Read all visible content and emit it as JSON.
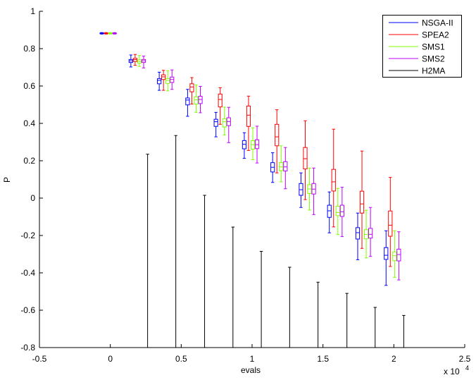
{
  "chart_data": {
    "type": "boxplot",
    "xlabel": "evals",
    "ylabel": "P",
    "x_multiplier_label": "x 10",
    "x_multiplier_exponent": "4",
    "xlim": [
      -0.5,
      2.5
    ],
    "ylim": [
      -0.8,
      1
    ],
    "x_ticks": [
      "-0.5",
      "0",
      "0.5",
      "1",
      "1.5",
      "2",
      "2.5"
    ],
    "y_ticks": [
      "-0.8",
      "-0.6",
      "-0.4",
      "-0.2",
      "0",
      "0.2",
      "0.4",
      "0.6",
      "0.8",
      "1"
    ],
    "grid": false,
    "legend_position": "top-right",
    "stat_fields": [
      "x",
      "whisker_low",
      "q1",
      "median",
      "q3",
      "whisker_high"
    ],
    "series": [
      {
        "name": "NSGA-II",
        "color": "#0000ff",
        "boxes": [
          [
            -0.06,
            0.878,
            0.88,
            0.882,
            0.884,
            0.886
          ],
          [
            0.145,
            0.702,
            0.726,
            0.735,
            0.742,
            0.766
          ],
          [
            0.345,
            0.577,
            0.612,
            0.63,
            0.639,
            0.674
          ],
          [
            0.545,
            0.438,
            0.499,
            0.525,
            0.536,
            0.582
          ],
          [
            0.745,
            0.328,
            0.384,
            0.409,
            0.422,
            0.459
          ],
          [
            0.945,
            0.213,
            0.264,
            0.288,
            0.308,
            0.35
          ],
          [
            1.145,
            0.084,
            0.14,
            0.165,
            0.19,
            0.243
          ],
          [
            1.345,
            -0.05,
            0.015,
            0.045,
            0.078,
            0.135
          ],
          [
            1.545,
            -0.186,
            -0.103,
            -0.068,
            -0.038,
            0.033
          ],
          [
            1.745,
            -0.33,
            -0.219,
            -0.185,
            -0.158,
            -0.08
          ],
          [
            1.945,
            -0.467,
            -0.328,
            -0.306,
            -0.265,
            -0.175
          ]
        ]
      },
      {
        "name": "SPEA2",
        "color": "#ff0000",
        "boxes": [
          [
            -0.03,
            0.878,
            0.88,
            0.882,
            0.884,
            0.886
          ],
          [
            0.175,
            0.711,
            0.731,
            0.741,
            0.748,
            0.769
          ],
          [
            0.375,
            0.577,
            0.635,
            0.649,
            0.66,
            0.684
          ],
          [
            0.575,
            0.503,
            0.569,
            0.595,
            0.612,
            0.645
          ],
          [
            0.775,
            0.395,
            0.488,
            0.528,
            0.557,
            0.591
          ],
          [
            0.975,
            0.255,
            0.384,
            0.444,
            0.493,
            0.546
          ],
          [
            1.175,
            0.135,
            0.28,
            0.328,
            0.395,
            0.473
          ],
          [
            1.375,
            -0.008,
            0.156,
            0.211,
            0.271,
            0.414
          ],
          [
            1.575,
            -0.154,
            0.038,
            0.087,
            0.154,
            0.369
          ],
          [
            1.775,
            -0.269,
            -0.08,
            -0.031,
            0.037,
            0.252
          ],
          [
            1.975,
            -0.366,
            -0.204,
            -0.145,
            -0.069,
            0.111
          ]
        ]
      },
      {
        "name": "SMS1",
        "color": "#80ff00",
        "boxes": [
          [
            0.0,
            0.878,
            0.88,
            0.882,
            0.884,
            0.886
          ],
          [
            0.205,
            0.705,
            0.723,
            0.731,
            0.74,
            0.763
          ],
          [
            0.405,
            0.574,
            0.614,
            0.63,
            0.64,
            0.682
          ],
          [
            0.605,
            0.459,
            0.503,
            0.526,
            0.542,
            0.606
          ],
          [
            0.805,
            0.337,
            0.381,
            0.409,
            0.425,
            0.487
          ],
          [
            1.005,
            0.206,
            0.262,
            0.286,
            0.308,
            0.376
          ],
          [
            1.205,
            0.087,
            0.147,
            0.167,
            0.191,
            0.28
          ],
          [
            1.405,
            -0.064,
            0.025,
            0.049,
            0.072,
            0.161
          ],
          [
            1.605,
            -0.195,
            -0.094,
            -0.077,
            -0.043,
            0.052
          ],
          [
            1.805,
            -0.32,
            -0.218,
            -0.194,
            -0.169,
            -0.065
          ],
          [
            2.005,
            -0.424,
            -0.335,
            -0.308,
            -0.288,
            -0.175
          ]
        ]
      },
      {
        "name": "SMS2",
        "color": "#bf00ff",
        "boxes": [
          [
            0.03,
            0.878,
            0.88,
            0.882,
            0.884,
            0.886
          ],
          [
            0.235,
            0.697,
            0.726,
            0.735,
            0.742,
            0.76
          ],
          [
            0.435,
            0.582,
            0.619,
            0.635,
            0.648,
            0.686
          ],
          [
            0.635,
            0.457,
            0.506,
            0.528,
            0.545,
            0.598
          ],
          [
            0.835,
            0.297,
            0.388,
            0.41,
            0.43,
            0.486
          ],
          [
            1.035,
            0.188,
            0.265,
            0.286,
            0.312,
            0.385
          ],
          [
            1.235,
            0.05,
            0.145,
            0.167,
            0.195,
            0.271
          ],
          [
            1.435,
            -0.088,
            0.022,
            0.048,
            0.078,
            0.161
          ],
          [
            1.635,
            -0.206,
            -0.098,
            -0.073,
            -0.038,
            0.058
          ],
          [
            1.835,
            -0.312,
            -0.214,
            -0.194,
            -0.162,
            -0.05
          ],
          [
            2.035,
            -0.438,
            -0.336,
            -0.302,
            -0.273,
            -0.18
          ]
        ]
      },
      {
        "name": "H2MA",
        "color": "#000000",
        "stems": [
          [
            0.263,
            0.235
          ],
          [
            0.462,
            0.335
          ],
          [
            0.665,
            0.015
          ],
          [
            0.865,
            -0.155
          ],
          [
            1.065,
            -0.285
          ],
          [
            1.265,
            -0.37
          ],
          [
            1.465,
            -0.45
          ],
          [
            1.669,
            -0.51
          ],
          [
            1.868,
            -0.585
          ],
          [
            2.07,
            -0.628
          ]
        ]
      }
    ]
  }
}
